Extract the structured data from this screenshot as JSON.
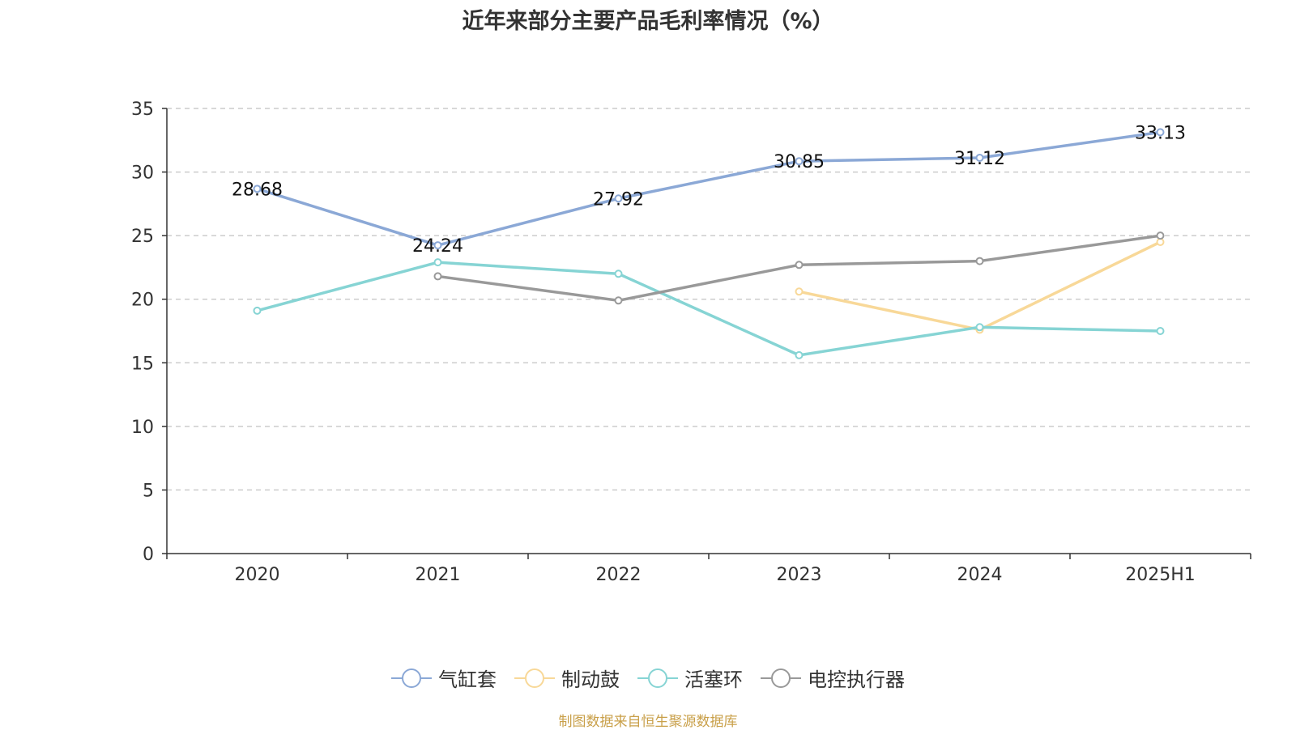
{
  "chart_data": {
    "type": "line",
    "title": "近年来部分主要产品毛利率情况（%）",
    "categories": [
      "2020",
      "2021",
      "2022",
      "2023",
      "2024",
      "2025H1"
    ],
    "ylim": [
      0,
      35
    ],
    "yticks": [
      0,
      5,
      10,
      15,
      20,
      25,
      30,
      35
    ],
    "grid": true,
    "legend_position": "bottom-center",
    "series": [
      {
        "name": "气缸套",
        "color": "#8ba8d6",
        "values": [
          28.68,
          24.24,
          27.92,
          30.85,
          31.12,
          33.13
        ],
        "show_labels": true
      },
      {
        "name": "制动鼓",
        "color": "#f8d898",
        "values": [
          null,
          null,
          null,
          20.6,
          17.6,
          24.5
        ],
        "show_labels": false
      },
      {
        "name": "活塞环",
        "color": "#86d4d4",
        "values": [
          19.1,
          22.9,
          22.0,
          15.6,
          17.8,
          17.5
        ],
        "show_labels": false
      },
      {
        "name": "电控执行器",
        "color": "#999999",
        "values": [
          null,
          21.8,
          19.9,
          22.7,
          23.0,
          25.0
        ],
        "show_labels": false
      }
    ]
  },
  "source_note": "制图数据来自恒生聚源数据库"
}
